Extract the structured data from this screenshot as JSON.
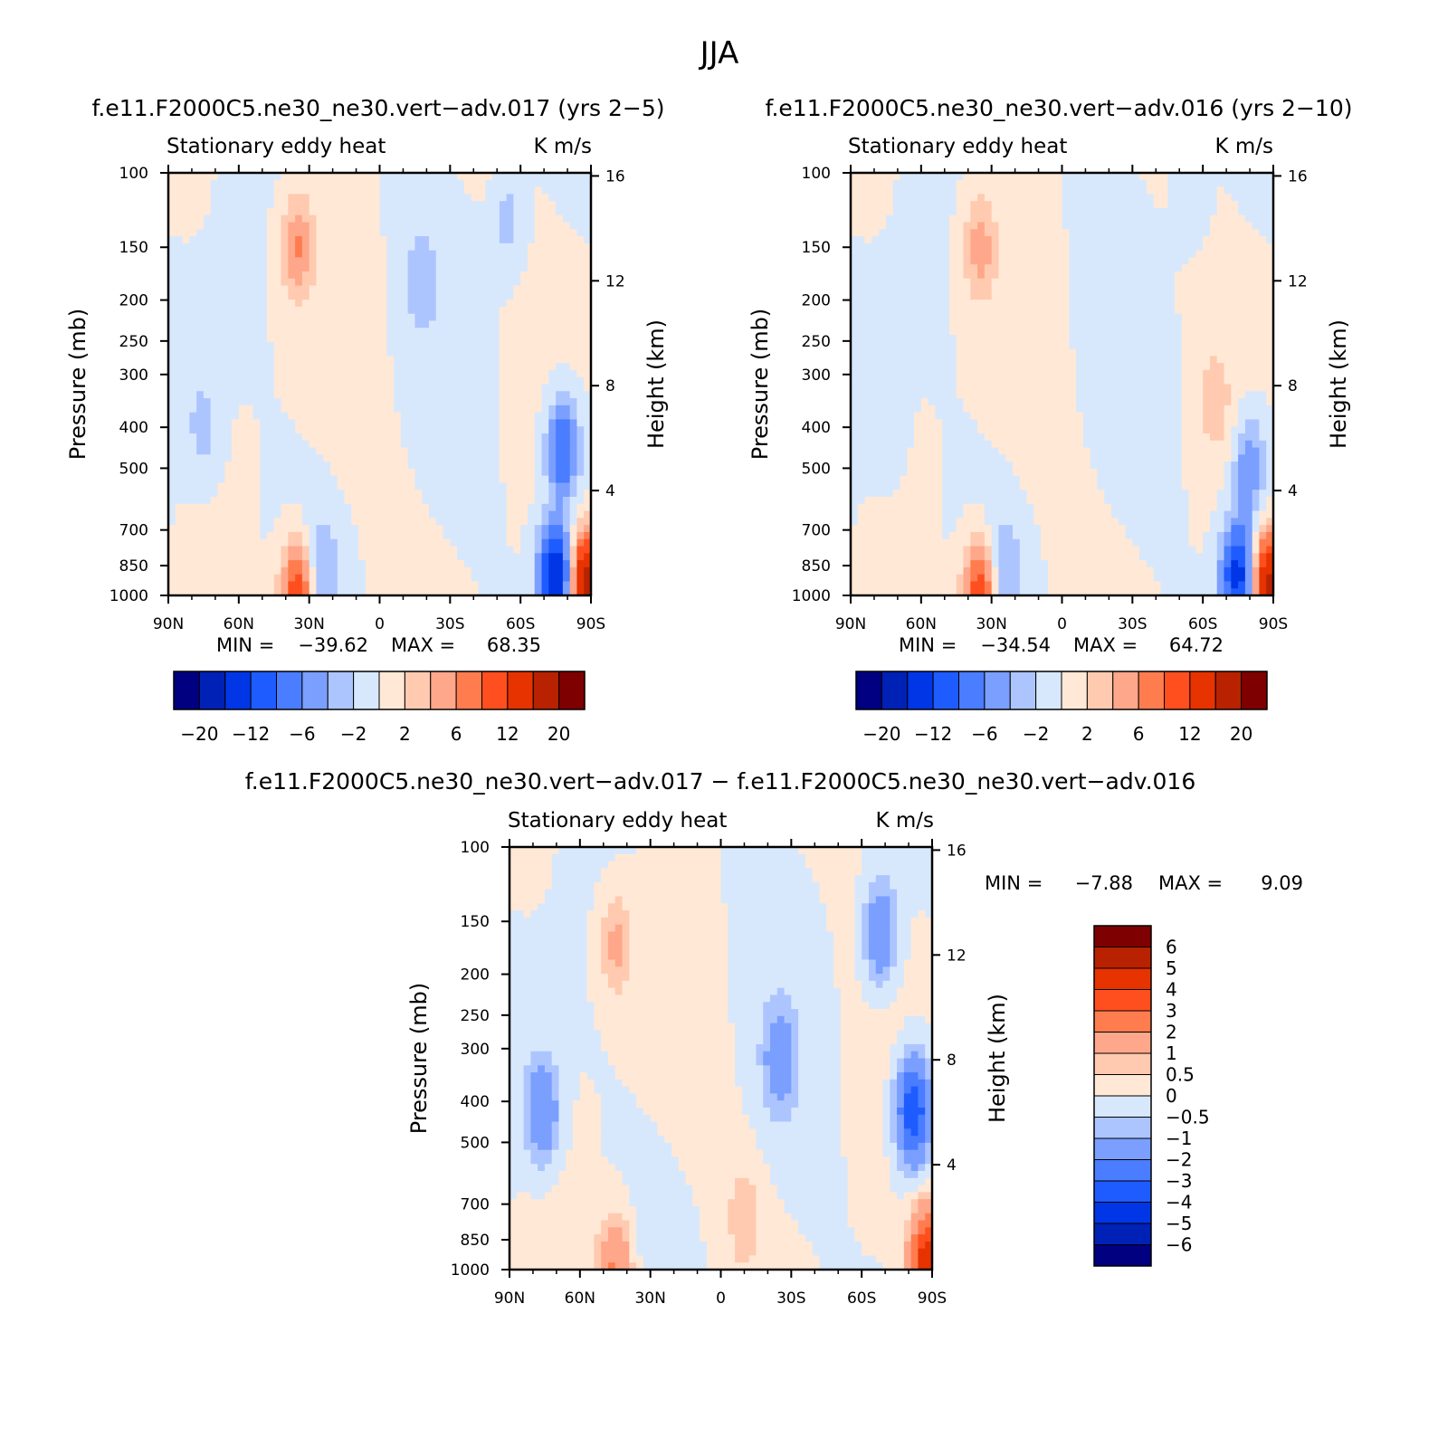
{
  "figure_title": "JJA",
  "chart_data": [
    {
      "type": "heatmap",
      "id": "panel1",
      "title": "f.e11.F2000C5.ne30_ne30.vert−adv.017 (yrs 2−5)",
      "left_string": "Stationary eddy heat",
      "right_string": "K m/s",
      "ylabel": "Pressure (mb)",
      "ylabel_right": "Height (km)",
      "x_ticks": [
        "90N",
        "60N",
        "30N",
        "0",
        "30S",
        "60S",
        "90S"
      ],
      "y_ticks": [
        "100",
        "150",
        "200",
        "250",
        "300",
        "400",
        "500",
        "700",
        "850",
        "1000"
      ],
      "y_ticks_right": [
        "16",
        "12",
        "8",
        "4"
      ],
      "min_label": "MIN =",
      "min_value": "−39.62",
      "max_label": "MAX =",
      "max_value": "68.35",
      "levels": [
        -20,
        -16,
        -12,
        -9,
        -6,
        -4,
        -2,
        0,
        2,
        4,
        6,
        9,
        12,
        16,
        20
      ],
      "colorbar_labels": [
        "−20",
        "−12",
        "−6",
        "−2",
        "2",
        "6",
        "12",
        "20"
      ],
      "colors": [
        "#000080",
        "#0021b5",
        "#0036e6",
        "#1f5cff",
        "#4a7dff",
        "#7a9fff",
        "#adc5ff",
        "#d8e8fc",
        "#ffe8d6",
        "#ffcab0",
        "#ffa78a",
        "#ff7c4f",
        "#ff4f1f",
        "#e63300",
        "#b82200",
        "#7f0000"
      ],
      "features": [
        {
          "lat": 35,
          "p": 150,
          "value": 6
        },
        {
          "lat": 35,
          "p": 1000,
          "value": 12
        },
        {
          "lat": -75,
          "p": 900,
          "value": -16
        },
        {
          "lat": -78,
          "p": 450,
          "value": -9
        },
        {
          "lat": -88,
          "p": 950,
          "value": 20
        },
        {
          "lat": -55,
          "p": 130,
          "value": -3
        },
        {
          "lat": 75,
          "p": 400,
          "value": -3
        },
        {
          "lat": 25,
          "p": 870,
          "value": -4
        },
        {
          "lat": -18,
          "p": 180,
          "value": -3
        }
      ]
    },
    {
      "type": "heatmap",
      "id": "panel2",
      "title": "f.e11.F2000C5.ne30_ne30.vert−adv.016 (yrs 2−10)",
      "left_string": "Stationary eddy heat",
      "right_string": "K m/s",
      "ylabel": "Pressure (mb)",
      "ylabel_right": "Height (km)",
      "x_ticks": [
        "90N",
        "60N",
        "30N",
        "0",
        "30S",
        "60S",
        "90S"
      ],
      "y_ticks": [
        "100",
        "150",
        "200",
        "250",
        "300",
        "400",
        "500",
        "700",
        "850",
        "1000"
      ],
      "y_ticks_right": [
        "16",
        "12",
        "8",
        "4"
      ],
      "min_label": "MIN =",
      "min_value": "−34.54",
      "max_label": "MAX =",
      "max_value": "64.72",
      "levels": [
        -20,
        -16,
        -12,
        -9,
        -6,
        -4,
        -2,
        0,
        2,
        4,
        6,
        9,
        12,
        16,
        20
      ],
      "colorbar_labels": [
        "−20",
        "−12",
        "−6",
        "−2",
        "2",
        "6",
        "12",
        "20"
      ],
      "colors": [
        "#000080",
        "#0021b5",
        "#0036e6",
        "#1f5cff",
        "#4a7dff",
        "#7a9fff",
        "#adc5ff",
        "#d8e8fc",
        "#ffe8d6",
        "#ffcab0",
        "#ffa78a",
        "#ff7c4f",
        "#ff4f1f",
        "#e63300",
        "#b82200",
        "#7f0000"
      ],
      "features": [
        {
          "lat": 35,
          "p": 150,
          "value": 5
        },
        {
          "lat": 35,
          "p": 1000,
          "value": 12
        },
        {
          "lat": -75,
          "p": 900,
          "value": -14
        },
        {
          "lat": -80,
          "p": 500,
          "value": -6
        },
        {
          "lat": -88,
          "p": 950,
          "value": 18
        },
        {
          "lat": -55,
          "p": 110,
          "value": -2
        },
        {
          "lat": 75,
          "p": 400,
          "value": -2
        },
        {
          "lat": 25,
          "p": 870,
          "value": -4
        },
        {
          "lat": -65,
          "p": 350,
          "value": 3
        }
      ]
    },
    {
      "type": "heatmap",
      "id": "panel3",
      "title": "f.e11.F2000C5.ne30_ne30.vert−adv.017 − f.e11.F2000C5.ne30_ne30.vert−adv.016",
      "left_string": "Stationary eddy heat",
      "right_string": "K m/s",
      "ylabel": "Pressure (mb)",
      "ylabel_right": "Height (km)",
      "x_ticks": [
        "90N",
        "60N",
        "30N",
        "0",
        "30S",
        "60S",
        "90S"
      ],
      "y_ticks": [
        "100",
        "150",
        "200",
        "250",
        "300",
        "400",
        "500",
        "700",
        "850",
        "1000"
      ],
      "y_ticks_right": [
        "16",
        "12",
        "8",
        "4"
      ],
      "min_label": "MIN =",
      "min_value": "−7.88",
      "max_label": "MAX =",
      "max_value": "9.09",
      "levels": [
        -6,
        -5,
        -4,
        -3,
        -2,
        -1,
        -0.5,
        0,
        0.5,
        1,
        2,
        3,
        4,
        5,
        6
      ],
      "colorbar_labels": [
        "6",
        "5",
        "4",
        "3",
        "2",
        "1",
        "0.5",
        "0",
        "−0.5",
        "−1",
        "−2",
        "−3",
        "−4",
        "−5",
        "−6"
      ],
      "colors": [
        "#000080",
        "#0021b5",
        "#0036e6",
        "#1f5cff",
        "#4a7dff",
        "#7a9fff",
        "#adc5ff",
        "#d8e8fc",
        "#ffe8d6",
        "#ffcab0",
        "#ffa78a",
        "#ff7c4f",
        "#ff4f1f",
        "#e63300",
        "#b82200",
        "#7f0000"
      ],
      "features": [
        {
          "lat": 45,
          "p": 170,
          "value": 1.2
        },
        {
          "lat": 45,
          "p": 1000,
          "value": 2.2
        },
        {
          "lat": -82,
          "p": 420,
          "value": -4
        },
        {
          "lat": -68,
          "p": 160,
          "value": -2
        },
        {
          "lat": -88,
          "p": 960,
          "value": 5
        },
        {
          "lat": 76,
          "p": 420,
          "value": -2
        },
        {
          "lat": -25,
          "p": 320,
          "value": -1.5
        },
        {
          "lat": -10,
          "p": 750,
          "value": 0.8
        }
      ]
    }
  ]
}
